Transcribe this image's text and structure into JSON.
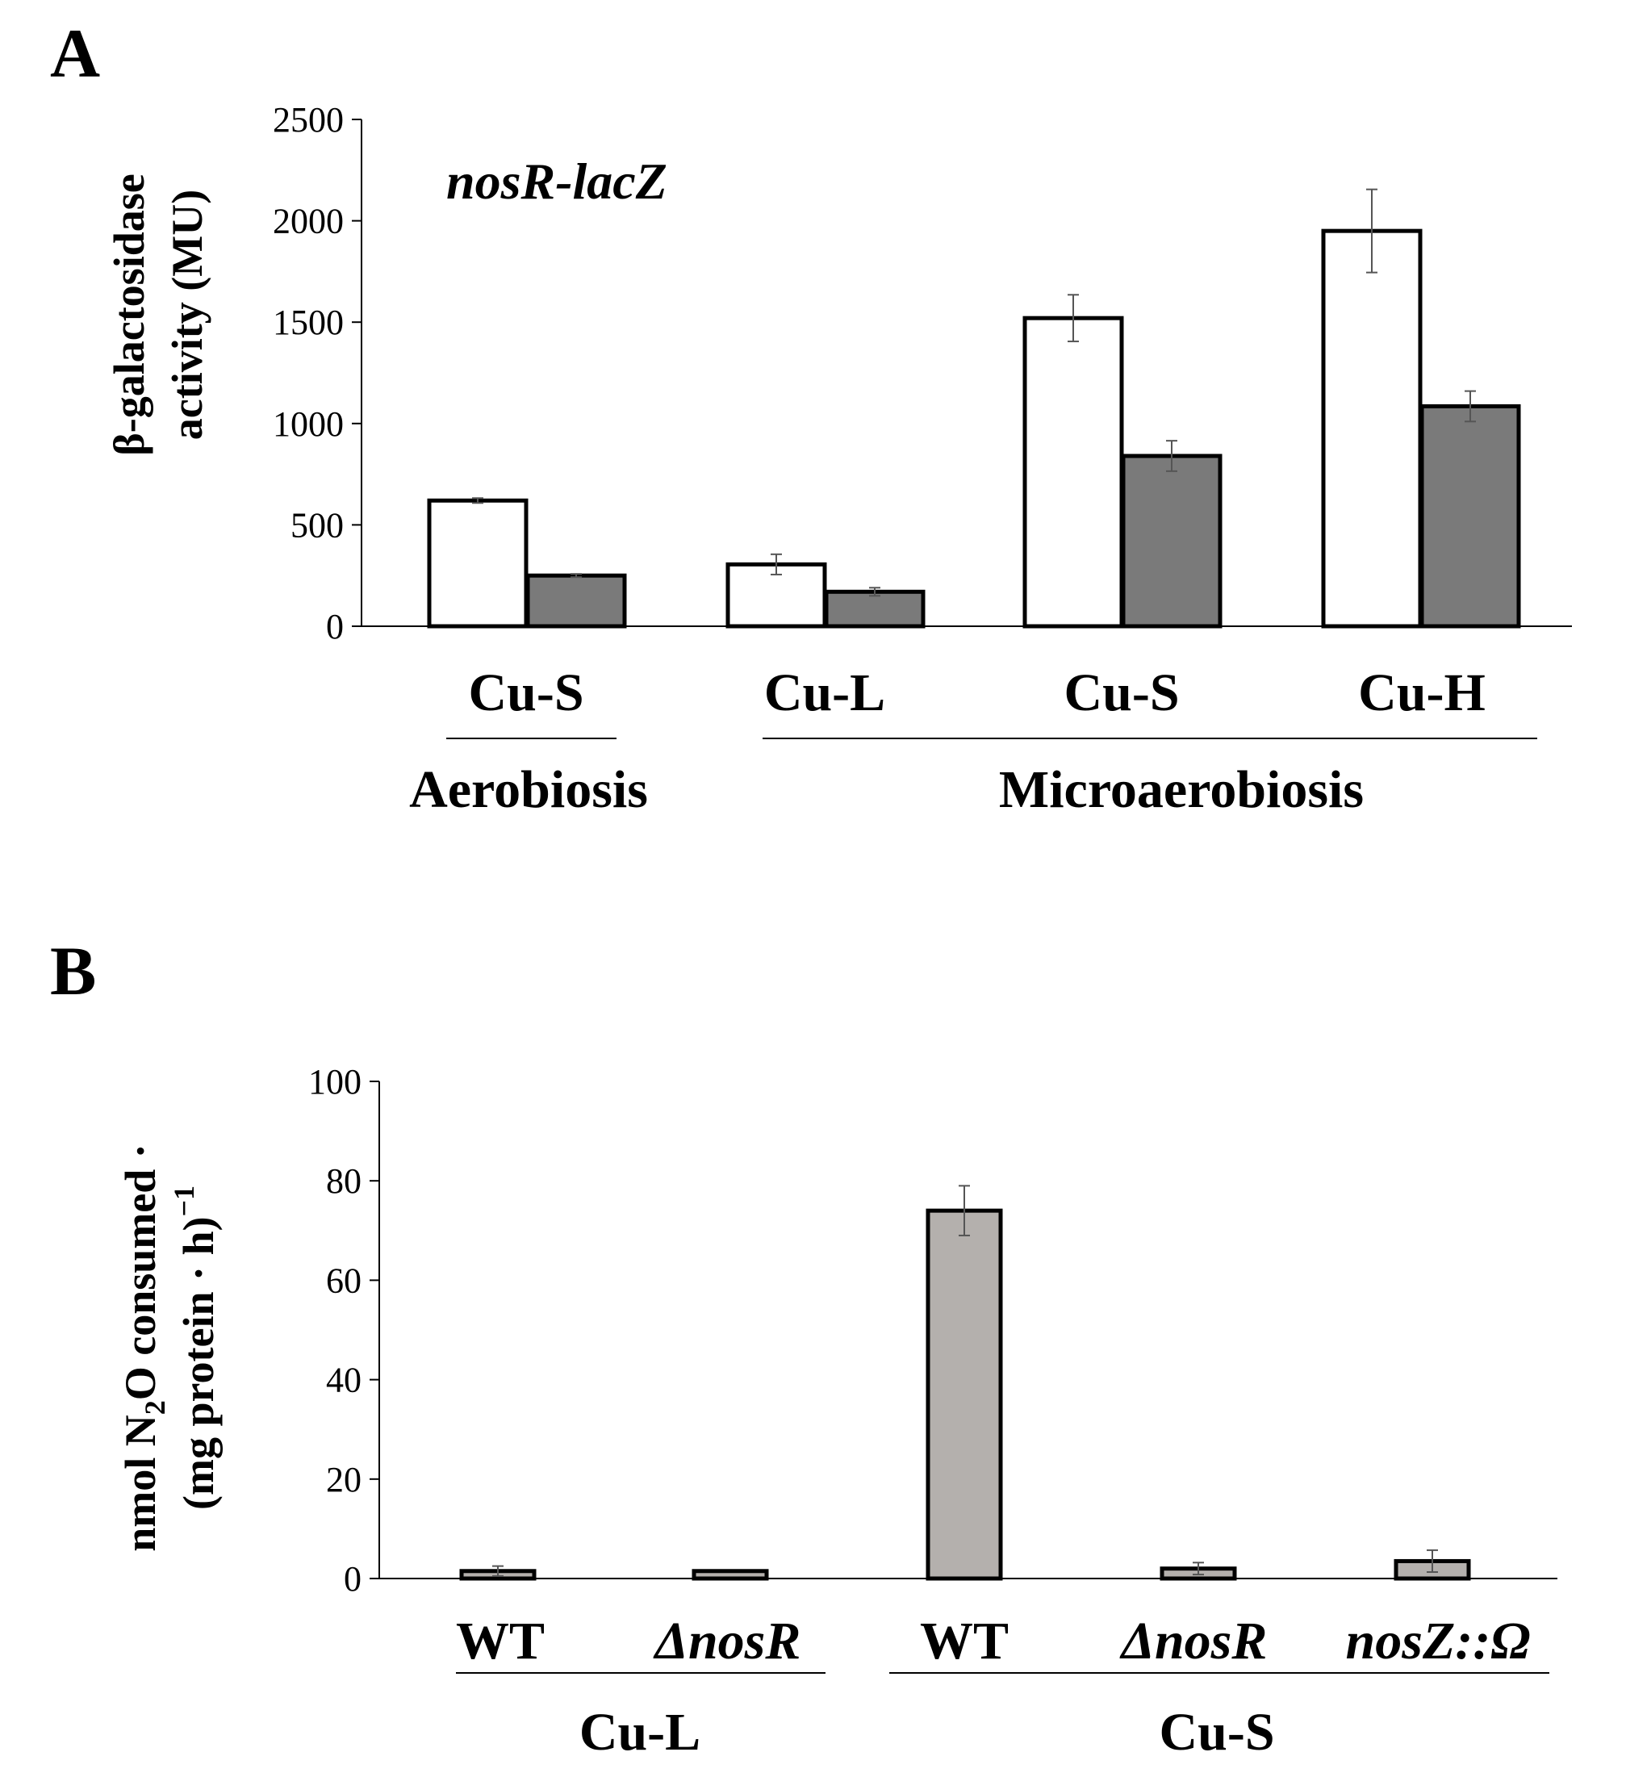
{
  "chart_data": [
    {
      "panel": "A",
      "type": "bar",
      "annotation": "nosR-lacZ",
      "ylabel_line1": "β-galactosidase",
      "ylabel_line2": "activity (MU)",
      "ylim": [
        0,
        2500
      ],
      "yticks": [
        0,
        500,
        1000,
        1500,
        2000,
        2500
      ],
      "categories": [
        "Cu-S",
        "Cu-L",
        "Cu-S",
        "Cu-H"
      ],
      "groups": [
        {
          "label": "Aerobiosis",
          "categories": [
            0
          ]
        },
        {
          "label": "Microaerobiosis",
          "categories": [
            1,
            2,
            3
          ]
        }
      ],
      "series": [
        {
          "name": "white",
          "color": "#ffffff",
          "values": [
            620,
            305,
            1520,
            1950
          ],
          "errors": [
            12,
            50,
            115,
            205
          ]
        },
        {
          "name": "gray",
          "color": "#7a7a7a",
          "values": [
            250,
            170,
            840,
            1085
          ],
          "errors": [
            8,
            20,
            75,
            75
          ]
        }
      ]
    },
    {
      "panel": "B",
      "type": "bar",
      "ylabel_line1": "nmol N",
      "ylabel_sub": "2",
      "ylabel_line1_rest": "O consumed ·",
      "ylabel_line2": "(mg protein · h)",
      "ylabel_sup": "−1",
      "ylim": [
        0,
        100
      ],
      "yticks": [
        0,
        20,
        40,
        60,
        80,
        100
      ],
      "categories": [
        "WT",
        "ΔnosR",
        "WT",
        "ΔnosR",
        "nosZ::Ω"
      ],
      "category_italic": [
        false,
        true,
        false,
        true,
        true
      ],
      "groups": [
        {
          "label": "Cu-L",
          "categories": [
            0,
            1
          ]
        },
        {
          "label": "Cu-S",
          "categories": [
            2,
            3,
            4
          ]
        }
      ],
      "series": [
        {
          "name": "gray",
          "color": "#b4b0ad",
          "values": [
            1.5,
            1.5,
            74,
            2,
            3.5
          ],
          "errors": [
            1,
            0,
            5,
            1.2,
            2.2
          ]
        }
      ]
    }
  ]
}
